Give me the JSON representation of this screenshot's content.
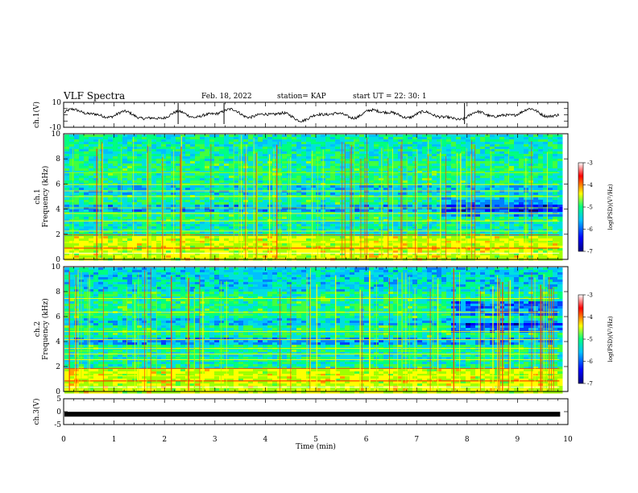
{
  "header": {
    "title": "VLF Spectra",
    "date": "Feb. 18, 2022",
    "station": "station= KAP",
    "start_time": "start  UT =   22: 30: 1"
  },
  "chart_data": [
    {
      "type": "line",
      "panel": "ch1-waveform",
      "ylabel": "ch.1(V)",
      "ylim": [
        -10,
        10
      ],
      "yticks": [
        "10",
        "-10"
      ],
      "xlim": [
        0,
        10
      ],
      "x_extent_min": 9.83,
      "trace_color": "#000000"
    },
    {
      "type": "heatmap",
      "panel": "ch1-spectrogram",
      "ylabel": "ch.1\nFrequency (kHz)",
      "ylim": [
        0,
        10
      ],
      "yticks": [
        "0",
        "2",
        "4",
        "6",
        "8",
        "10"
      ],
      "xlim": [
        0,
        10
      ],
      "colorbar": {
        "label": "log(PSD)(V²/Hz)",
        "range": [
          -7,
          -3
        ],
        "ticks": [
          "-3",
          "-4",
          "-5",
          "-6",
          "-7"
        ],
        "colors": [
          "#000080",
          "#0000ff",
          "#00c0ff",
          "#00ff80",
          "#ffff00",
          "#ff0000",
          "#ffffff"
        ]
      }
    },
    {
      "type": "heatmap",
      "panel": "ch2-spectrogram",
      "ylabel": "ch.2\nFrequency (kHz)",
      "ylim": [
        0,
        10
      ],
      "yticks": [
        "0",
        "2",
        "4",
        "6",
        "8",
        "10"
      ],
      "xlim": [
        0,
        10
      ],
      "colorbar": {
        "label": "log(PSD)(V²/Hz)",
        "range": [
          -7,
          -3
        ],
        "ticks": [
          "-3",
          "-4",
          "-5",
          "-6",
          "-7"
        ],
        "colors": [
          "#000080",
          "#0000ff",
          "#00c0ff",
          "#00ff80",
          "#ffff00",
          "#ff0000",
          "#ffffff"
        ]
      }
    },
    {
      "type": "line",
      "panel": "ch3-waveform",
      "ylabel": "ch.3(V)",
      "ylim": [
        -5,
        5
      ],
      "yticks": [
        "5",
        "0",
        "-5"
      ],
      "xlim": [
        0,
        10
      ],
      "xlabel": "Time  (min)",
      "xticks": [
        "0",
        "1",
        "2",
        "3",
        "4",
        "5",
        "6",
        "7",
        "8",
        "9",
        "10"
      ],
      "constant_value": -1
    }
  ]
}
